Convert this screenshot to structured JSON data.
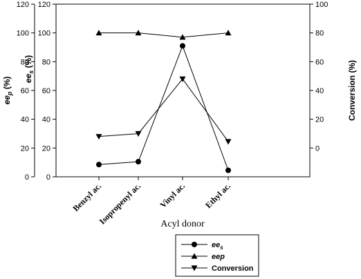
{
  "chart_data": {
    "type": "line",
    "categories": [
      "Benzyl ac.",
      "Isopropenyl ac.",
      "Vinyl ac.",
      "Ethyl ac."
    ],
    "xlabel": "Acyl donor",
    "axes": {
      "outer_left": {
        "label_main": "ee",
        "label_sub": "p",
        "label_suffix": " (%)",
        "range": [
          0,
          120
        ],
        "ticks": [
          0,
          20,
          40,
          60,
          80,
          100,
          120
        ]
      },
      "inner_left": {
        "label_main": "ee",
        "label_sub": "s",
        "label_suffix": " (%)",
        "range": [
          0,
          120
        ],
        "ticks": [
          0,
          20,
          40,
          60,
          80,
          100,
          120
        ]
      },
      "right": {
        "label": "Conversion (%)",
        "range": [
          -20,
          100
        ],
        "ticks": [
          0,
          20,
          40,
          60,
          80,
          100
        ]
      }
    },
    "series": [
      {
        "name_main": "ee",
        "name_sub": "s",
        "marker": "circle",
        "axis": "inner_left",
        "values": [
          8.5,
          10.5,
          91,
          4.5
        ]
      },
      {
        "name_main": "eep",
        "name_sub": "",
        "marker": "triangle-up",
        "axis": "outer_left",
        "values": [
          100,
          100,
          97,
          100
        ]
      },
      {
        "name_main": "Conversion",
        "name_sub": "",
        "marker": "triangle-down",
        "axis": "right",
        "values": [
          8,
          10,
          48,
          4.5
        ]
      }
    ],
    "legend_position": "bottom",
    "grid": false
  }
}
